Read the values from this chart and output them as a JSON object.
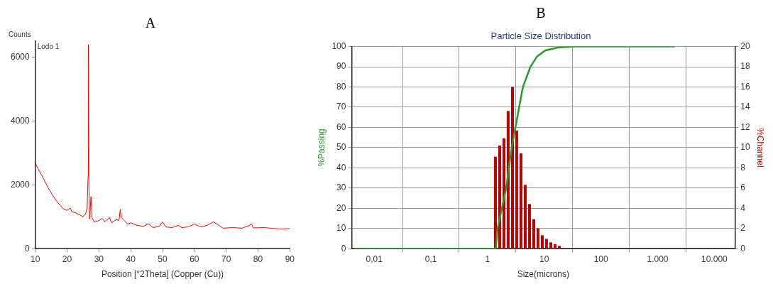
{
  "chart_data": [
    {
      "type": "line",
      "title": "A",
      "xlabel": "Position [°2Theta] (Copper (Cu))",
      "ylabel": "Counts",
      "annotations": [
        "Lodo 1"
      ],
      "x": [
        10,
        11,
        12,
        13,
        14,
        15,
        16,
        17,
        18,
        19,
        20,
        21,
        21.5,
        23,
        24,
        25,
        25.8,
        26.3,
        26.6,
        26.7,
        26.85,
        27.1,
        27.5,
        27.8,
        28.5,
        30,
        31,
        32,
        33.3,
        34,
        35.5,
        36.3,
        36.7,
        37,
        38,
        39,
        40,
        41,
        42,
        44,
        45.5,
        47,
        49,
        50,
        51,
        53,
        55,
        56,
        58,
        60,
        62,
        64,
        66,
        68,
        69,
        72,
        75,
        78,
        78.5,
        82,
        85,
        88,
        90
      ],
      "series": [
        {
          "color": "#ff0000",
          "values": [
            2680,
            2480,
            2300,
            2110,
            1910,
            1750,
            1590,
            1450,
            1340,
            1230,
            1200,
            1270,
            1160,
            1110,
            1060,
            1000,
            1090,
            1270,
            2270,
            6390,
            2000,
            930,
            1630,
            980,
            840,
            880,
            950,
            840,
            980,
            810,
            910,
            880,
            1230,
            980,
            880,
            770,
            810,
            770,
            730,
            700,
            780,
            660,
            700,
            840,
            680,
            660,
            730,
            660,
            680,
            770,
            680,
            730,
            840,
            710,
            640,
            660,
            640,
            760,
            650,
            660,
            630,
            610,
            630
          ]
        }
      ],
      "xlim": [
        10,
        90
      ],
      "xticks": [
        10,
        20,
        30,
        40,
        50,
        60,
        70,
        80,
        90
      ],
      "ylim": [
        0,
        6500
      ],
      "yticks": [
        0,
        2000,
        4000,
        6000
      ],
      "legend": false
    },
    {
      "type": "line",
      "title": "B",
      "subtitle": "Particle Size Distribution",
      "xlabel": "Size(microns)",
      "ylabel": "%Passing",
      "y2label": "%Channel",
      "log": "x",
      "grid": true,
      "legend": false,
      "series": [
        {
          "type": "line",
          "color": "#2a9a2a",
          "x": [
            0.0045,
            1.4,
            1.5,
            2.13,
            2.66,
            3.6,
            4.2,
            5.7,
            7.4,
            10.3,
            17,
            33,
            2000
          ],
          "values": [
            0,
            0,
            10,
            30,
            50,
            70,
            80,
            90,
            95,
            98,
            99.5,
            100,
            100
          ]
        },
        {
          "type": "bar",
          "axis": "y2",
          "color": "#c00000",
          "x": [
            1.37,
            1.63,
            1.94,
            2.3,
            2.74,
            3.25,
            3.87,
            4.6,
            5.47,
            6.5,
            7.73,
            9.19,
            10.9,
            13,
            15.5,
            18.4
          ],
          "values": [
            9.1,
            10.2,
            10.9,
            13.6,
            16,
            11.7,
            9.4,
            6.3,
            4.4,
            2.9,
            2,
            1.3,
            0.95,
            0.6,
            0.45,
            0.25
          ]
        }
      ],
      "xlim": [
        0.004,
        23000
      ],
      "xticks": [
        {
          "value": 0.01,
          "label": "0,01"
        },
        {
          "value": 0.1,
          "label": "0,1"
        },
        1,
        10,
        100,
        {
          "value": 1000,
          "label": "1.000"
        },
        {
          "value": 10000,
          "label": "10.000"
        }
      ],
      "ylim": [
        0,
        100
      ],
      "yticks": [
        0,
        10,
        20,
        30,
        40,
        50,
        60,
        70,
        80,
        90,
        100
      ],
      "y2lim": [
        0,
        20
      ],
      "y2ticks": [
        0,
        2,
        4,
        6,
        8,
        10,
        12,
        14,
        16,
        18,
        20
      ]
    }
  ]
}
